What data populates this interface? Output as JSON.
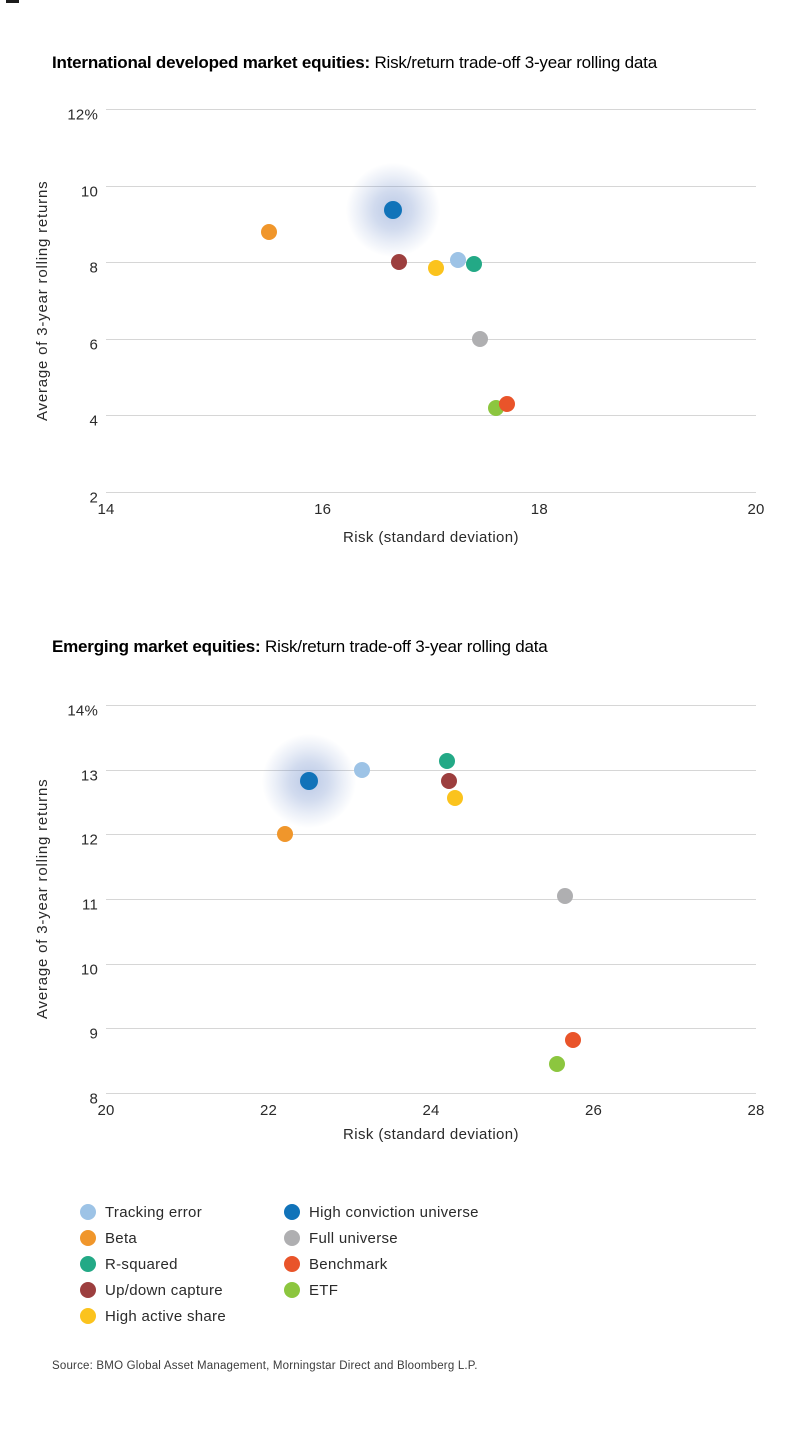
{
  "chart_data": [
    {
      "type": "scatter",
      "title_bold": "International developed market equities:",
      "title_regular": "Risk/return trade-off 3-year rolling data",
      "xlabel": "Risk (standard deviation)",
      "ylabel": "Average of 3-year rolling returns",
      "xlim": [
        14,
        20
      ],
      "ylim": [
        2,
        12
      ],
      "x_ticks": [
        14,
        16,
        18,
        20
      ],
      "x_tick_labels": [
        "14",
        "16",
        "18",
        "20"
      ],
      "y_ticks": [
        2,
        4,
        6,
        8,
        10,
        12
      ],
      "y_tick_labels": [
        "2",
        "4",
        "6",
        "8",
        "10",
        "12%"
      ],
      "grid": "horizontal",
      "points": [
        {
          "series": "Beta",
          "x": 15.5,
          "y": 8.8
        },
        {
          "series": "High conviction universe",
          "x": 16.65,
          "y": 9.35,
          "highlight": true
        },
        {
          "series": "Up/down capture",
          "x": 16.7,
          "y": 8.0
        },
        {
          "series": "High active share",
          "x": 17.05,
          "y": 7.85
        },
        {
          "series": "Tracking error",
          "x": 17.25,
          "y": 8.05
        },
        {
          "series": "R-squared",
          "x": 17.4,
          "y": 7.95
        },
        {
          "series": "Full universe",
          "x": 17.45,
          "y": 6.0
        },
        {
          "series": "ETF",
          "x": 17.6,
          "y": 4.2
        },
        {
          "series": "Benchmark",
          "x": 17.7,
          "y": 4.3
        }
      ]
    },
    {
      "type": "scatter",
      "title_bold": "Emerging market equities:",
      "title_regular": "Risk/return trade-off 3-year rolling data",
      "xlabel": "Risk (standard deviation)",
      "ylabel": "Average of 3-year rolling returns",
      "xlim": [
        20,
        28
      ],
      "ylim": [
        8,
        14
      ],
      "x_ticks": [
        20,
        22,
        24,
        26,
        28
      ],
      "x_tick_labels": [
        "20",
        "22",
        "24",
        "26",
        "28"
      ],
      "y_ticks": [
        8,
        9,
        10,
        11,
        12,
        13,
        14
      ],
      "y_tick_labels": [
        "8",
        "9",
        "10",
        "11",
        "12",
        "13",
        "14%"
      ],
      "grid": "horizontal",
      "points": [
        {
          "series": "Beta",
          "x": 22.2,
          "y": 12.0
        },
        {
          "series": "High conviction universe",
          "x": 22.5,
          "y": 12.82,
          "highlight": true
        },
        {
          "series": "Tracking error",
          "x": 23.15,
          "y": 13.0
        },
        {
          "series": "R-squared",
          "x": 24.2,
          "y": 13.13
        },
        {
          "series": "Up/down capture",
          "x": 24.22,
          "y": 12.83
        },
        {
          "series": "High active share",
          "x": 24.3,
          "y": 12.56
        },
        {
          "series": "Full universe",
          "x": 25.65,
          "y": 11.05
        },
        {
          "series": "ETF",
          "x": 25.55,
          "y": 8.45
        },
        {
          "series": "Benchmark",
          "x": 25.75,
          "y": 8.82
        }
      ]
    }
  ],
  "series": [
    {
      "name": "Tracking error",
      "color": "#9DC3E6"
    },
    {
      "name": "Beta",
      "color": "#F0962B"
    },
    {
      "name": "R-squared",
      "color": "#23A986"
    },
    {
      "name": "Up/down capture",
      "color": "#9C3E3E"
    },
    {
      "name": "High active share",
      "color": "#FBC31D"
    },
    {
      "name": "High conviction universe",
      "color": "#1173B9"
    },
    {
      "name": "Full universe",
      "color": "#AFAFB1"
    },
    {
      "name": "Benchmark",
      "color": "#E9542A"
    },
    {
      "name": "ETF",
      "color": "#8CC63F"
    }
  ],
  "legend": {
    "column1": [
      "Tracking error",
      "Beta",
      "R-squared",
      "Up/down capture",
      "High active share"
    ],
    "column2": [
      "High conviction universe",
      "Full universe",
      "Benchmark",
      "ETF"
    ]
  },
  "source": "Source: BMO Global Asset Management, Morningstar Direct and Bloomberg L.P."
}
